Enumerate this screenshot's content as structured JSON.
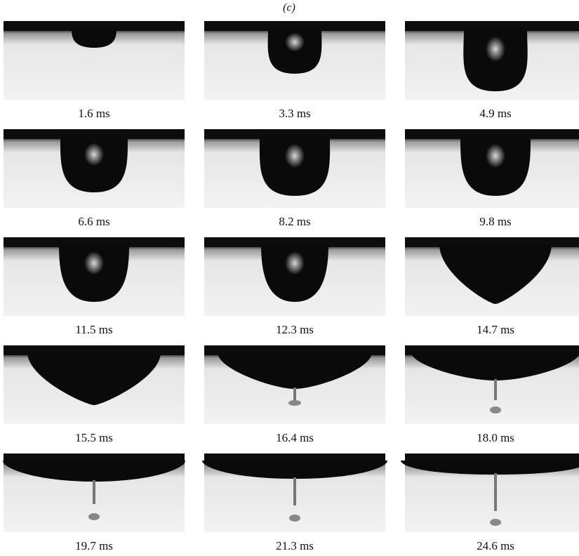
{
  "panel_label": "(c)",
  "frames": [
    {
      "caption": "1.6 ms"
    },
    {
      "caption": "3.3 ms"
    },
    {
      "caption": "4.9 ms"
    },
    {
      "caption": "6.6 ms"
    },
    {
      "caption": "8.2 ms"
    },
    {
      "caption": "9.8 ms"
    },
    {
      "caption": "11.5 ms"
    },
    {
      "caption": "12.3 ms"
    },
    {
      "caption": "14.7 ms"
    },
    {
      "caption": "15.5 ms"
    },
    {
      "caption": "16.4 ms"
    },
    {
      "caption": "18.0 ms"
    },
    {
      "caption": "19.7 ms"
    },
    {
      "caption": "21.3 ms"
    },
    {
      "caption": "24.6 ms"
    }
  ]
}
